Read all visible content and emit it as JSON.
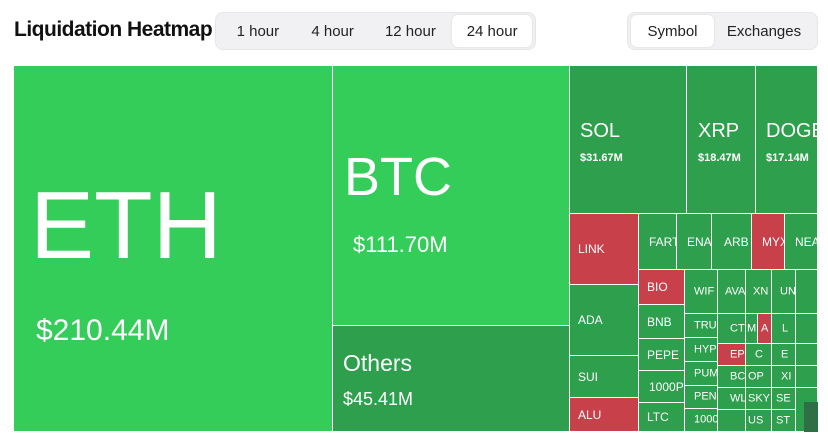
{
  "title": "Liquidation Heatmap",
  "time_tabs": [
    "1 hour",
    "4 hour",
    "12 hour",
    "24 hour"
  ],
  "time_active": "24 hour",
  "view_tabs": [
    "Symbol",
    "Exchanges"
  ],
  "view_active": "Symbol",
  "colors": {
    "bright_green": "#34cd59",
    "green": "#2e9f4d",
    "red": "#c7404a"
  },
  "tiles": {
    "eth": {
      "symbol": "ETH",
      "value": "$210.44M"
    },
    "btc": {
      "symbol": "BTC",
      "value": "$111.70M"
    },
    "others": {
      "symbol": "Others",
      "value": "$45.41M"
    },
    "sol": {
      "symbol": "SOL",
      "value": "$31.67M"
    },
    "xrp": {
      "symbol": "XRP",
      "value": "$18.47M"
    },
    "doge": {
      "symbol": "DOGE",
      "value": "$17.14M"
    },
    "link": "LINK",
    "ada": "ADA",
    "sui": "SUI",
    "alu": "ALU",
    "fart": "FART",
    "ena": "ENA",
    "arb": "ARB",
    "myx": "MYX",
    "near": "NEAR",
    "bio": "BIO",
    "bnb": "BNB",
    "pepe": "PEPE",
    "p1000": "1000P",
    "ltc": "LTC",
    "wif": "WIF",
    "ava": "AVA",
    "xn": "XN",
    "un": "UN",
    "a": "A",
    "trui": "TRUI",
    "ct": "CT",
    "m": "M",
    "l": "L",
    "hyp": "HYP",
    "epi": "EPI",
    "c1": "C",
    "e1": "E",
    "pum": "PUM",
    "bch": "BCH",
    "op": "OP",
    "xi": "XI",
    "peng": "PENG",
    "wl": "WL",
    "sk": "SKY",
    "se": "SE",
    "k2": "1000",
    "us": "US",
    "st": "ST"
  }
}
